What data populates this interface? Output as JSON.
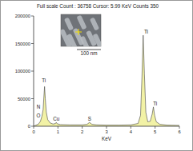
{
  "chart_data": {
    "type": "line",
    "title": "Full scale Count : 36758 Cursor: 5.99 KeV Counts 350",
    "x_label": "KeV",
    "x": [
      0,
      0.1,
      0.2,
      0.28,
      0.34,
      0.39,
      0.42,
      0.45,
      0.48,
      0.52,
      0.58,
      0.68,
      0.8,
      0.9,
      0.93,
      0.97,
      1.1,
      1.5,
      2.0,
      2.2,
      2.3,
      2.4,
      2.6,
      3.0,
      3.5,
      4.0,
      4.3,
      4.4,
      4.46,
      4.51,
      4.56,
      4.62,
      4.7,
      4.8,
      4.88,
      4.93,
      4.98,
      5.05,
      5.2,
      5.5,
      6.0
    ],
    "values": [
      0,
      2000,
      4000,
      9000,
      18000,
      30000,
      52000,
      72000,
      50000,
      26000,
      12000,
      6000,
      4000,
      5000,
      7000,
      4500,
      3000,
      2500,
      2500,
      3500,
      7000,
      3500,
      2500,
      2000,
      2000,
      2500,
      5000,
      20000,
      90000,
      165000,
      95000,
      25000,
      8000,
      9000,
      22000,
      35000,
      20000,
      8000,
      3500,
      2000,
      1500
    ],
    "xlim": [
      0,
      6
    ],
    "xticks": [
      0,
      1,
      2,
      3,
      4,
      5,
      6
    ],
    "ylim": [
      0,
      200000
    ],
    "yticks": [
      0,
      50000,
      100000,
      150000,
      200000
    ],
    "color": "#f2f2a6",
    "annotations": [
      {
        "text": "Ti",
        "x": 0.42,
        "y": 80000
      },
      {
        "text": "N",
        "x": 0.2,
        "y": 32000
      },
      {
        "text": "O",
        "x": 0.2,
        "y": 16000
      },
      {
        "text": "Cu",
        "x": 0.93,
        "y": 10000
      },
      {
        "text": "S",
        "x": 2.3,
        "y": 10000
      },
      {
        "text": "Ti",
        "x": 4.63,
        "y": 168000
      },
      {
        "text": "Ti",
        "x": 5.0,
        "y": 38000
      }
    ],
    "scale_bar_label": "100 nm"
  }
}
